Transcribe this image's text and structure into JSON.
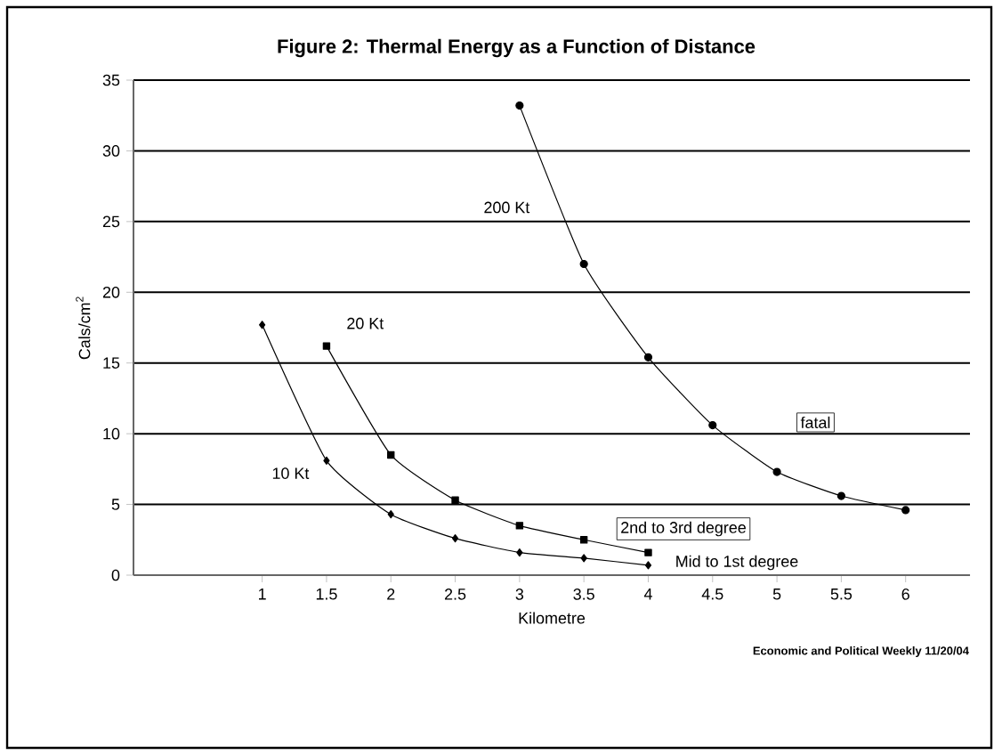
{
  "chart_data": {
    "type": "line",
    "title": "Figure 2: Thermal Energy as a Function of Distance",
    "xlabel": "Kilometre",
    "ylabel": "Cals/cm$^{2}$",
    "series": [
      {
        "name": "10 Kt",
        "color": "#000000",
        "marker": "diamond",
        "x": [
          1,
          1.5,
          2,
          2.5,
          3,
          3.5,
          4
        ],
        "values": [
          17.7,
          8.1,
          4.3,
          2.6,
          1.6,
          1.2,
          0.7
        ]
      },
      {
        "name": "20 Kt",
        "color": "#000000",
        "marker": "square",
        "x": [
          1.5,
          2,
          2.5,
          3,
          3.5,
          4
        ],
        "values": [
          16.2,
          8.5,
          5.3,
          3.5,
          2.5,
          1.6
        ]
      },
      {
        "name": "200 Kt",
        "color": "#000000",
        "marker": "circle",
        "x": [
          3,
          3.5,
          4,
          4.5,
          5,
          5.5,
          6
        ],
        "values": [
          33.2,
          22,
          15.4,
          10.6,
          7.3,
          5.6,
          4.6
        ]
      }
    ],
    "xlim": [
      0,
      6.5
    ],
    "ylim": [
      0,
      35
    ],
    "xticks": [
      1,
      1.5,
      2,
      2.5,
      3,
      3.5,
      4,
      4.5,
      5,
      5.5,
      6
    ],
    "yticks": [
      0,
      5,
      10,
      15,
      20,
      25,
      30,
      35
    ],
    "grid": "y",
    "line_style": "solid",
    "annotations": [
      {
        "text": "fatal",
        "x": 5.3,
        "y": 10.8
      },
      "2nd to 3rd degree",
      "Mid to 1st degree",
      "Economic and Political Weekly 11/20/04"
    ]
  }
}
